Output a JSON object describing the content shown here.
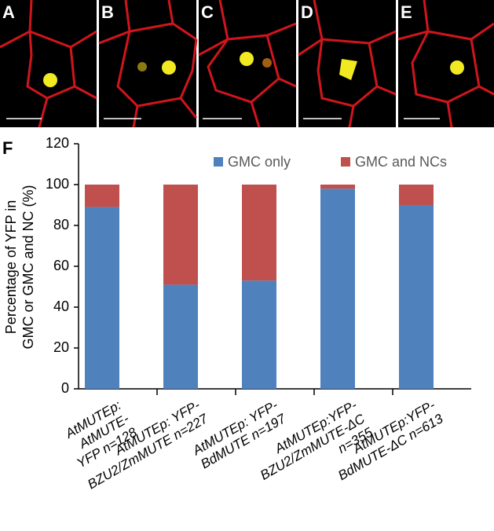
{
  "panels": [
    "A",
    "B",
    "C",
    "D",
    "E"
  ],
  "chart_data": {
    "type": "stacked-bar",
    "panel": "F",
    "y_label": "Percentage of YFP in\nGMC or GMC and NC (%)",
    "categories": [
      "AtMUTEp: AtMUTE-\nYFP  n=128",
      "AtMUTEp: YFP-\nBZU2/ZmMUTE  n=227",
      "AtMUTEp: YFP-\nBdMUTE n=197",
      "AtMUTEp:YFP-\nBZU2/ZmMUTE-ΔC\nn=355",
      "AtMUTEp:YFP-\nBdMUTE-ΔC n=613"
    ],
    "series": [
      {
        "name": "GMC only",
        "color": "#4f81bd",
        "values": [
          89,
          51,
          53,
          98,
          90
        ]
      },
      {
        "name": "GMC and NCs",
        "color": "#c0504d",
        "values": [
          11,
          49,
          47,
          2,
          10
        ]
      }
    ],
    "ylim": [
      0,
      120
    ],
    "yticks": [
      0,
      20,
      40,
      60,
      80,
      100,
      120
    ],
    "grid": false
  }
}
